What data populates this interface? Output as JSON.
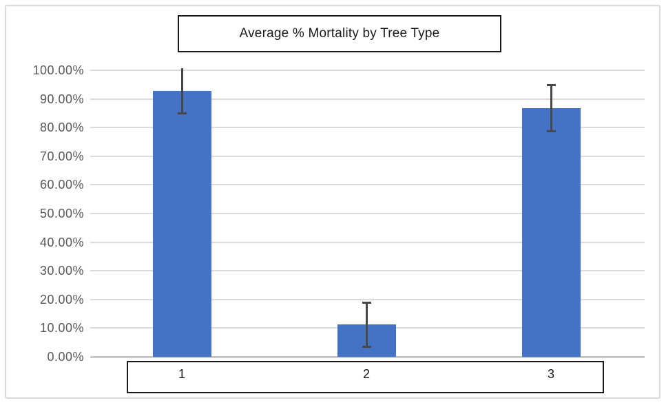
{
  "chart_data": {
    "type": "bar",
    "title": "Average % Mortality by Tree Type",
    "categories": [
      "1",
      "2",
      "3"
    ],
    "values": [
      92.9,
      11.2,
      86.8
    ],
    "error_bars": [
      7.9,
      7.6,
      8.0
    ],
    "ylim": [
      0,
      100
    ],
    "ytick_step": 10,
    "yticks": [
      "100.00%",
      "90.00%",
      "80.00%",
      "70.00%",
      "60.00%",
      "50.00%",
      "40.00%",
      "30.00%",
      "20.00%",
      "10.00%",
      "0.00%"
    ],
    "xlabel": "",
    "ylabel": "",
    "grid": true,
    "legend": "none",
    "colors": {
      "bar": "#4472C4",
      "error_bar": "#474747",
      "gridline": "#DBDBDB",
      "axis_line": "#C9C9C9",
      "tick_label": "#595959",
      "category_label": "#1A1A1A",
      "title_text": "#1A1A1A",
      "box_border": "#1A1A1A",
      "chart_border": "#D9D9D9"
    }
  }
}
